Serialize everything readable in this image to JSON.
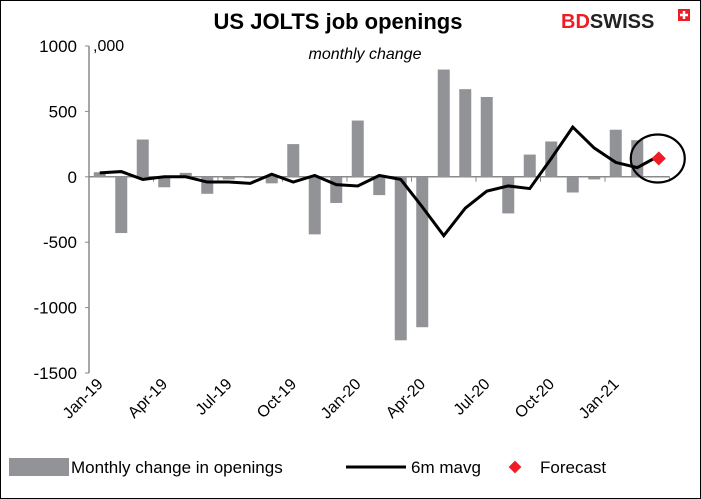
{
  "chart_data": {
    "type": "bar",
    "title": "US JOLTS job openings",
    "subtitle": "monthly change",
    "unit_label": ",000",
    "brand": "BDSWISS",
    "ylim": [
      -1500,
      1000
    ],
    "yticks": [
      1000,
      500,
      0,
      -500,
      -1000,
      -1500
    ],
    "grid": false,
    "legend_position": "bottom",
    "categories": [
      "Jan-19",
      "Feb-19",
      "Mar-19",
      "Apr-19",
      "May-19",
      "Jun-19",
      "Jul-19",
      "Aug-19",
      "Sep-19",
      "Oct-19",
      "Nov-19",
      "Dec-19",
      "Jan-20",
      "Feb-20",
      "Mar-20",
      "Apr-20",
      "May-20",
      "Jun-20",
      "Jul-20",
      "Aug-20",
      "Sep-20",
      "Oct-20",
      "Nov-20",
      "Dec-20",
      "Jan-21",
      "Feb-21",
      "Mar-21"
    ],
    "xtick_labels": [
      "Jan-19",
      "Apr-19",
      "Jul-19",
      "Oct-19",
      "Jan-20",
      "Apr-20",
      "Jul-20",
      "Oct-20",
      "Jan-21"
    ],
    "series": [
      {
        "name": "Monthly change in openings",
        "type": "bar",
        "color": "#929397",
        "values": [
          35,
          -430,
          285,
          -80,
          30,
          -130,
          -20,
          -10,
          -50,
          250,
          -440,
          -200,
          430,
          -140,
          -1250,
          -1150,
          820,
          670,
          610,
          -280,
          170,
          270,
          -120,
          -20,
          360,
          280,
          null
        ]
      },
      {
        "name": "6m mavg",
        "type": "line",
        "color": "#000000",
        "values": [
          30,
          40,
          -20,
          0,
          0,
          -40,
          -40,
          -50,
          20,
          -40,
          10,
          -60,
          -70,
          10,
          -20,
          -230,
          -450,
          -240,
          -110,
          -70,
          -90,
          140,
          380,
          220,
          110,
          70,
          160
        ]
      },
      {
        "name": "Forecast",
        "type": "scatter",
        "color": "#ee1c25",
        "values": [
          null,
          null,
          null,
          null,
          null,
          null,
          null,
          null,
          null,
          null,
          null,
          null,
          null,
          null,
          null,
          null,
          null,
          null,
          null,
          null,
          null,
          null,
          null,
          null,
          null,
          null,
          140
        ]
      }
    ]
  }
}
